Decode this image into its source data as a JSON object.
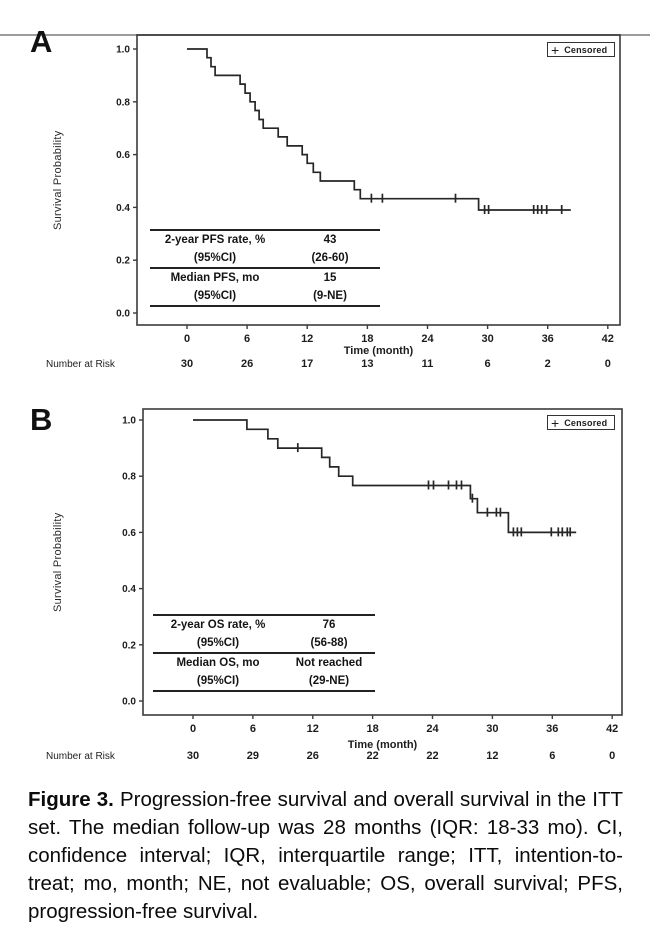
{
  "figure": {
    "caption_label": "Figure 3.",
    "caption_text": "Progression-free survival and overall survival in the ITT set. The median follow-up was 28 months (IQR: 18-33 mo). CI, confidence interval; IQR, interquartile range; ITT, intention-to-treat; mo, month; NE, not evaluable; OS, overall survival; PFS, progression-free survival."
  },
  "chart_data": [
    {
      "panel_label": "A",
      "type": "line",
      "subtype": "kaplan-meier-step",
      "title": "Progression-free survival",
      "xlabel": "Time (month)",
      "ylabel": "Survival Probability",
      "xlim": [
        0,
        42
      ],
      "ylim": [
        0.0,
        1.0
      ],
      "xticks": [
        0,
        6,
        12,
        18,
        24,
        30,
        36,
        42
      ],
      "yticks": [
        "1.0",
        "0.8",
        "0.6",
        "0.4",
        "0.2",
        "0.0"
      ],
      "legend": {
        "symbol": "+",
        "label": "Censored",
        "position": "top-right"
      },
      "steps": [
        [
          0,
          1.0
        ],
        [
          2.0,
          0.967
        ],
        [
          2.4,
          0.933
        ],
        [
          2.8,
          0.9
        ],
        [
          5.3,
          0.867
        ],
        [
          5.8,
          0.833
        ],
        [
          6.3,
          0.8
        ],
        [
          6.8,
          0.767
        ],
        [
          7.2,
          0.733
        ],
        [
          7.6,
          0.7
        ],
        [
          9.1,
          0.667
        ],
        [
          10.0,
          0.633
        ],
        [
          11.5,
          0.6
        ],
        [
          12.0,
          0.567
        ],
        [
          12.6,
          0.533
        ],
        [
          13.3,
          0.5
        ],
        [
          16.7,
          0.467
        ],
        [
          17.3,
          0.433
        ],
        [
          29.1,
          0.39
        ]
      ],
      "end_time": 38.3,
      "censors": [
        [
          18.4,
          0.433
        ],
        [
          19.5,
          0.433
        ],
        [
          26.8,
          0.433
        ],
        [
          29.7,
          0.39
        ],
        [
          30.1,
          0.39
        ],
        [
          34.6,
          0.39
        ],
        [
          35.0,
          0.39
        ],
        [
          35.4,
          0.39
        ],
        [
          35.9,
          0.39
        ],
        [
          37.4,
          0.39
        ]
      ],
      "inset_rows": [
        [
          "2-year PFS rate, %",
          "43"
        ],
        [
          "(95%CI)",
          "(26-60)"
        ],
        [
          "Median PFS, mo",
          "15"
        ],
        [
          "(95%CI)",
          "(9-NE)"
        ]
      ],
      "risk_label": "Number at Risk",
      "risk": [
        30,
        26,
        17,
        13,
        11,
        6,
        2,
        0
      ]
    },
    {
      "panel_label": "B",
      "type": "line",
      "subtype": "kaplan-meier-step",
      "title": "Overall survival",
      "xlabel": "Time (month)",
      "ylabel": "Survival Probability",
      "xlim": [
        0,
        42
      ],
      "ylim": [
        0.0,
        1.0
      ],
      "xticks": [
        0,
        6,
        12,
        18,
        24,
        30,
        36,
        42
      ],
      "yticks": [
        "1.0",
        "0.8",
        "0.6",
        "0.4",
        "0.2",
        "0.0"
      ],
      "legend": {
        "symbol": "+",
        "label": "Censored",
        "position": "top-right"
      },
      "steps": [
        [
          0,
          1.0
        ],
        [
          5.4,
          0.967
        ],
        [
          7.5,
          0.933
        ],
        [
          8.5,
          0.9
        ],
        [
          12.9,
          0.867
        ],
        [
          13.7,
          0.833
        ],
        [
          14.6,
          0.8
        ],
        [
          16.0,
          0.767
        ],
        [
          27.8,
          0.72
        ],
        [
          28.5,
          0.67
        ],
        [
          31.6,
          0.6
        ]
      ],
      "end_time": 38.4,
      "censors": [
        [
          10.5,
          0.9
        ],
        [
          23.6,
          0.767
        ],
        [
          24.1,
          0.767
        ],
        [
          25.6,
          0.767
        ],
        [
          26.4,
          0.767
        ],
        [
          26.9,
          0.767
        ],
        [
          28.0,
          0.72
        ],
        [
          29.5,
          0.67
        ],
        [
          30.4,
          0.67
        ],
        [
          30.8,
          0.67
        ],
        [
          32.1,
          0.6
        ],
        [
          32.5,
          0.6
        ],
        [
          32.9,
          0.6
        ],
        [
          35.9,
          0.6
        ],
        [
          36.6,
          0.6
        ],
        [
          37.0,
          0.6
        ],
        [
          37.5,
          0.6
        ],
        [
          37.8,
          0.6
        ]
      ],
      "inset_rows": [
        [
          "2-year OS rate, %",
          "76"
        ],
        [
          "(95%CI)",
          "(56-88)"
        ],
        [
          "Median OS, mo",
          "Not reached"
        ],
        [
          "(95%CI)",
          "(29-NE)"
        ]
      ],
      "risk_label": "Number at Risk",
      "risk": [
        30,
        29,
        26,
        22,
        22,
        12,
        6,
        0
      ]
    }
  ]
}
